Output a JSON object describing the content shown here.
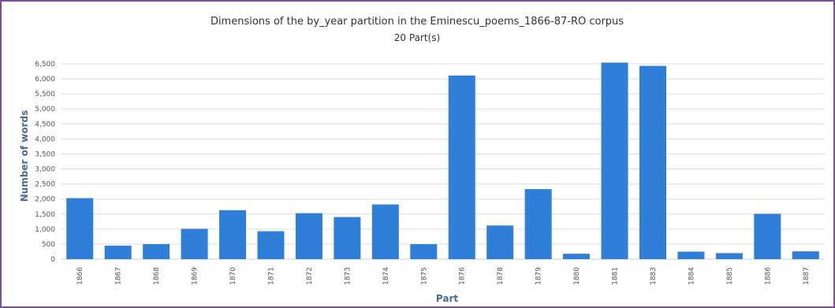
{
  "chart_data": {
    "type": "bar",
    "title": "Dimensions of the by_year partition in the Eminescu_poems_1866-87-RO corpus",
    "subtitle": "20 Part(s)",
    "xlabel": "Part",
    "ylabel": "Number of words",
    "ylim": [
      0,
      6500
    ],
    "yticks": [
      "0",
      "500",
      "1,000",
      "1,500",
      "2,000",
      "2,500",
      "3,000",
      "3,500",
      "4,000",
      "4,500",
      "5,000",
      "5,500",
      "6,000",
      "6,500"
    ],
    "ytick_values": [
      0,
      500,
      1000,
      1500,
      2000,
      2500,
      3000,
      3500,
      4000,
      4500,
      5000,
      5500,
      6000,
      6500
    ],
    "grid": true,
    "bar_color": "#2f7ed8",
    "categories": [
      "1866",
      "1867",
      "1868",
      "1869",
      "1870",
      "1871",
      "1872",
      "1873",
      "1874",
      "1875",
      "1876",
      "1878",
      "1879",
      "1880",
      "1881",
      "1883",
      "1884",
      "1885",
      "1886",
      "1887"
    ],
    "values": [
      2030,
      450,
      500,
      1010,
      1630,
      930,
      1530,
      1400,
      1820,
      500,
      6110,
      1120,
      2330,
      180,
      6540,
      6430,
      250,
      200,
      1510,
      260
    ]
  }
}
